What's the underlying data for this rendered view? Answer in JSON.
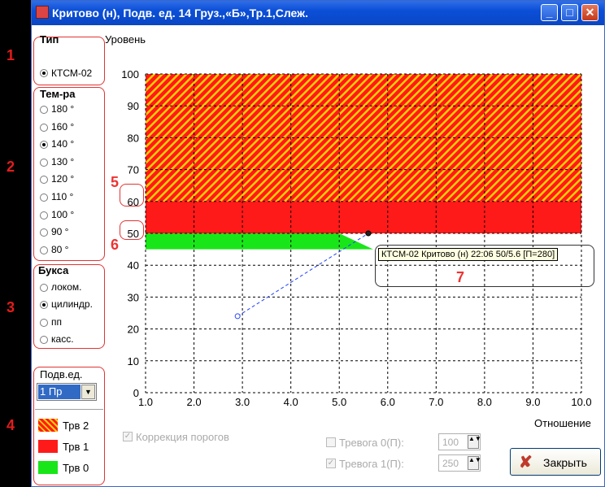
{
  "window": {
    "title": "Критово (н), Подв. ед.  14 Груз.,«Б»,Тр.1,Слеж."
  },
  "titlebar_buttons": {
    "minimize": "_",
    "maximize": "□",
    "close": "✕"
  },
  "type_group": {
    "title": "Тип",
    "options": [
      {
        "label": "КТСМ-02",
        "selected": true
      }
    ]
  },
  "level_label": "Уровень",
  "temp_group": {
    "title": "Тем-ра",
    "options": [
      {
        "label": "180 °",
        "selected": false
      },
      {
        "label": "160 °",
        "selected": false
      },
      {
        "label": "140 °",
        "selected": true
      },
      {
        "label": "130 °",
        "selected": false
      },
      {
        "label": "120 °",
        "selected": false
      },
      {
        "label": "110 °",
        "selected": false
      },
      {
        "label": "100 °",
        "selected": false
      },
      {
        "label": "90 °",
        "selected": false
      },
      {
        "label": "80 °",
        "selected": false
      }
    ]
  },
  "axle_group": {
    "title": "Букса",
    "options": [
      {
        "label": "локом.",
        "selected": false
      },
      {
        "label": "цилиндр.",
        "selected": true
      },
      {
        "label": "пп",
        "selected": false
      },
      {
        "label": "касс.",
        "selected": false
      }
    ]
  },
  "unit_group": {
    "title": "Подв.ед.",
    "selected": "1 Пр",
    "arrow": "▼"
  },
  "legend": [
    {
      "label": "Трв 2",
      "color": "#ff1a1a",
      "hatch": true
    },
    {
      "label": "Трв 1",
      "color": "#ff1a1a",
      "hatch": false
    },
    {
      "label": "Трв 0",
      "color": "#19e619",
      "hatch": false
    }
  ],
  "annotations": {
    "sidebar_numbers": [
      "1",
      "2",
      "3",
      "4"
    ],
    "chart_markers": [
      "5",
      "6",
      "7"
    ],
    "marker_60": "60",
    "marker_50": "50"
  },
  "chart_data": {
    "type": "line",
    "xlabel": "Отношение",
    "xlim": [
      1.0,
      10.0
    ],
    "ylim": [
      0,
      100
    ],
    "x_ticks": [
      "1.0",
      "2.0",
      "3.0",
      "4.0",
      "5.0",
      "6.0",
      "7.0",
      "8.0",
      "9.0",
      "10.0"
    ],
    "y_ticks": [
      "0",
      "10",
      "20",
      "30",
      "40",
      "50",
      "60",
      "70",
      "80",
      "90",
      "100"
    ],
    "grid": true,
    "zones": [
      {
        "name": "Трв 2",
        "y_from": 60,
        "y_to": 100,
        "color": "#ff1a1a",
        "hatch_color": "#ffd000"
      },
      {
        "name": "Трв 1",
        "y_from": 50,
        "y_to": 60,
        "color": "#ff1a1a"
      },
      {
        "name": "Трв 0",
        "y_from": 45,
        "y_to": 50,
        "x_to": 5.0,
        "color": "#19e619"
      }
    ],
    "points": [
      {
        "x": 2.9,
        "y": 24,
        "style": "hollow"
      },
      {
        "x": 5.6,
        "y": 50,
        "style": "filled"
      }
    ],
    "tooltip": "КТСМ-02 Критово (н) 22:06 50/5.6 [П=280]"
  },
  "footer": {
    "threshold_correction": "Коррекция порогов",
    "alarm0_label": "Тревога 0(П):",
    "alarm0_value": "100",
    "alarm1_label": "Тревога 1(П):",
    "alarm1_value": "250",
    "close_label": "Закрыть",
    "spin_glyph": "▲▼"
  }
}
